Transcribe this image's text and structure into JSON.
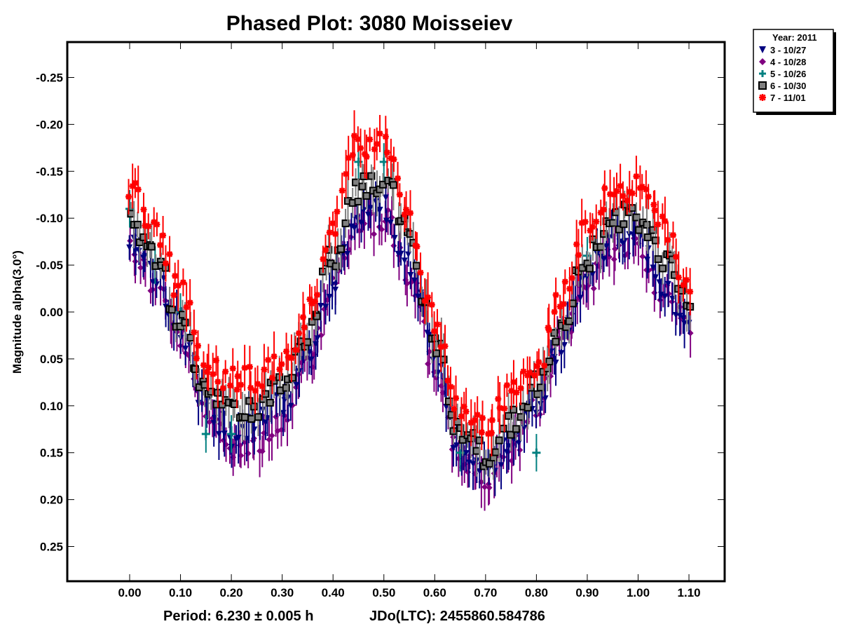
{
  "chart_data": {
    "type": "scatter",
    "title": "Phased Plot: 3080 Moisseiev",
    "xlabel": "",
    "ylabel": "Magnitude alpha(3.0°)",
    "footer": {
      "period": "Period: 6.230 ± 0.005 h",
      "epoch": "JDo(LTC): 2455860.584786"
    },
    "xlim": [
      -0.12,
      1.17
    ],
    "ylim": [
      -0.28,
      0.285
    ],
    "y_inverted": true,
    "grid": false,
    "x_ticks": [
      0.0,
      0.1,
      0.2,
      0.3,
      0.4,
      0.5,
      0.6,
      0.7,
      0.8,
      0.9,
      1.0,
      1.1
    ],
    "x_tick_labels": [
      "0.00",
      "0.10",
      "0.20",
      "0.30",
      "0.40",
      "0.50",
      "0.60",
      "0.70",
      "0.80",
      "0.90",
      "1.00",
      "1.10"
    ],
    "y_ticks": [
      -0.25,
      -0.2,
      -0.15,
      -0.1,
      -0.05,
      0.0,
      0.05,
      0.1,
      0.15,
      0.2,
      0.25
    ],
    "y_tick_labels": [
      "-0.25",
      "-0.20",
      "-0.15",
      "-0.10",
      "-0.05",
      "0.00",
      "0.05",
      "0.10",
      "0.15",
      "0.20",
      "0.25"
    ],
    "legend": {
      "placement": "top-right-outside",
      "title": "Year: 2011",
      "entries": [
        {
          "label": "3 - 10/27",
          "marker": "triangle-down",
          "color": "#000080"
        },
        {
          "label": "4 - 10/28",
          "marker": "diamond",
          "color": "#800080"
        },
        {
          "label": "5 - 10/26",
          "marker": "plus",
          "color": "#008080"
        },
        {
          "label": "6 - 10/30",
          "marker": "square",
          "color": "#808080"
        },
        {
          "label": "7 - 11/01",
          "marker": "asterisk",
          "color": "#ff0000"
        }
      ]
    },
    "x": [
      0.0,
      0.05,
      0.1,
      0.15,
      0.2,
      0.25,
      0.3,
      0.35,
      0.4,
      0.45,
      0.5,
      0.55,
      0.6,
      0.65,
      0.7,
      0.75,
      0.8,
      0.85,
      0.9,
      0.95,
      1.0,
      1.05,
      1.1
    ],
    "series": [
      {
        "name": "3 - 10/27",
        "values": [
          -0.08,
          -0.04,
          0.02,
          0.1,
          0.13,
          0.12,
          0.1,
          0.05,
          -0.03,
          -0.1,
          -0.11,
          -0.05,
          0.05,
          0.15,
          0.17,
          0.14,
          0.1,
          0.03,
          -0.04,
          -0.08,
          -0.08,
          -0.03,
          0.02
        ],
        "error_bar": 0.02
      },
      {
        "name": "4 - 10/28",
        "values": [
          -0.07,
          -0.03,
          0.03,
          0.11,
          0.14,
          0.14,
          0.12,
          0.06,
          -0.03,
          -0.09,
          -0.1,
          -0.04,
          0.06,
          0.16,
          0.18,
          0.15,
          0.1,
          0.03,
          -0.03,
          -0.07,
          -0.07,
          -0.02,
          0.02
        ],
        "error_bar": 0.02
      },
      {
        "name": "5 - 10/26",
        "values": [
          -0.11,
          -0.05,
          0.0,
          0.13,
          0.13,
          null,
          null,
          null,
          null,
          -0.16,
          -0.16,
          null,
          null,
          0.15,
          null,
          null,
          0.15,
          null,
          -0.06,
          null,
          null,
          null,
          null
        ],
        "error_bar": 0.02
      },
      {
        "name": "6 - 10/30",
        "values": [
          -0.1,
          -0.06,
          0.01,
          0.08,
          0.1,
          0.1,
          0.08,
          0.03,
          -0.06,
          -0.13,
          -0.14,
          -0.08,
          0.03,
          0.13,
          0.15,
          0.12,
          0.08,
          0.01,
          -0.06,
          -0.1,
          -0.1,
          -0.06,
          0.0
        ],
        "error_bar": 0.02
      },
      {
        "name": "7 - 11/01",
        "values": [
          -0.13,
          -0.09,
          -0.02,
          0.06,
          0.07,
          0.07,
          0.06,
          0.0,
          -0.09,
          -0.18,
          -0.18,
          -0.1,
          0.01,
          0.11,
          0.12,
          0.09,
          0.06,
          -0.02,
          -0.09,
          -0.13,
          -0.13,
          -0.09,
          -0.02
        ],
        "error_bar": 0.02
      }
    ]
  }
}
